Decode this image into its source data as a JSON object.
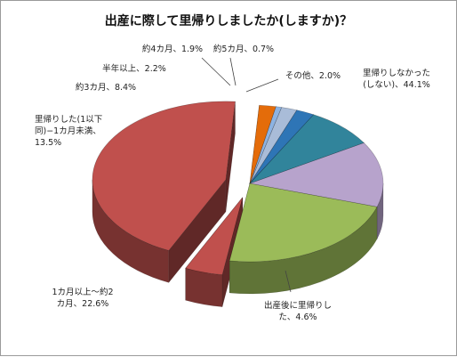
{
  "chart_data": {
    "type": "pie",
    "title": "出産に際して里帰りしましたか(しますか)？",
    "slices": [
      {
        "label_lines": [
          "里帰りしなかった",
          "(しない)、44.1%"
        ],
        "value": 44.1,
        "color": "#c0504d",
        "exploded": true
      },
      {
        "label_lines": [
          "出産後に里帰りし",
          "た、4.6%"
        ],
        "value": 4.6,
        "color": "#c0504d",
        "exploded": true
      },
      {
        "label_lines": [
          "1カ月以上〜約2",
          "カ月、22.6%"
        ],
        "value": 22.6,
        "color": "#9bbb59",
        "exploded": false
      },
      {
        "label_lines": [
          "里帰りした(1以下",
          "同)−1カ月未満、",
          "13.5%"
        ],
        "value": 13.5,
        "color": "#b7a3cc",
        "exploded": false
      },
      {
        "label_lines": [
          "約3カ月、8.4%"
        ],
        "value": 8.4,
        "color": "#31849b",
        "exploded": false
      },
      {
        "label_lines": [
          "半年以上、2.2%"
        ],
        "value": 2.2,
        "color": "#2e75b6",
        "exploded": false
      },
      {
        "label_lines": [
          "約4カ月、1.9%"
        ],
        "value": 1.9,
        "color": "#a9bcd8",
        "exploded": false
      },
      {
        "label_lines": [
          "約5カ月、0.7%"
        ],
        "value": 0.7,
        "color": "#8db3e2",
        "exploded": false
      },
      {
        "label_lines": [
          "その他、2.0%"
        ],
        "value": 2.0,
        "color": "#e46c0a",
        "exploded": false
      }
    ]
  }
}
